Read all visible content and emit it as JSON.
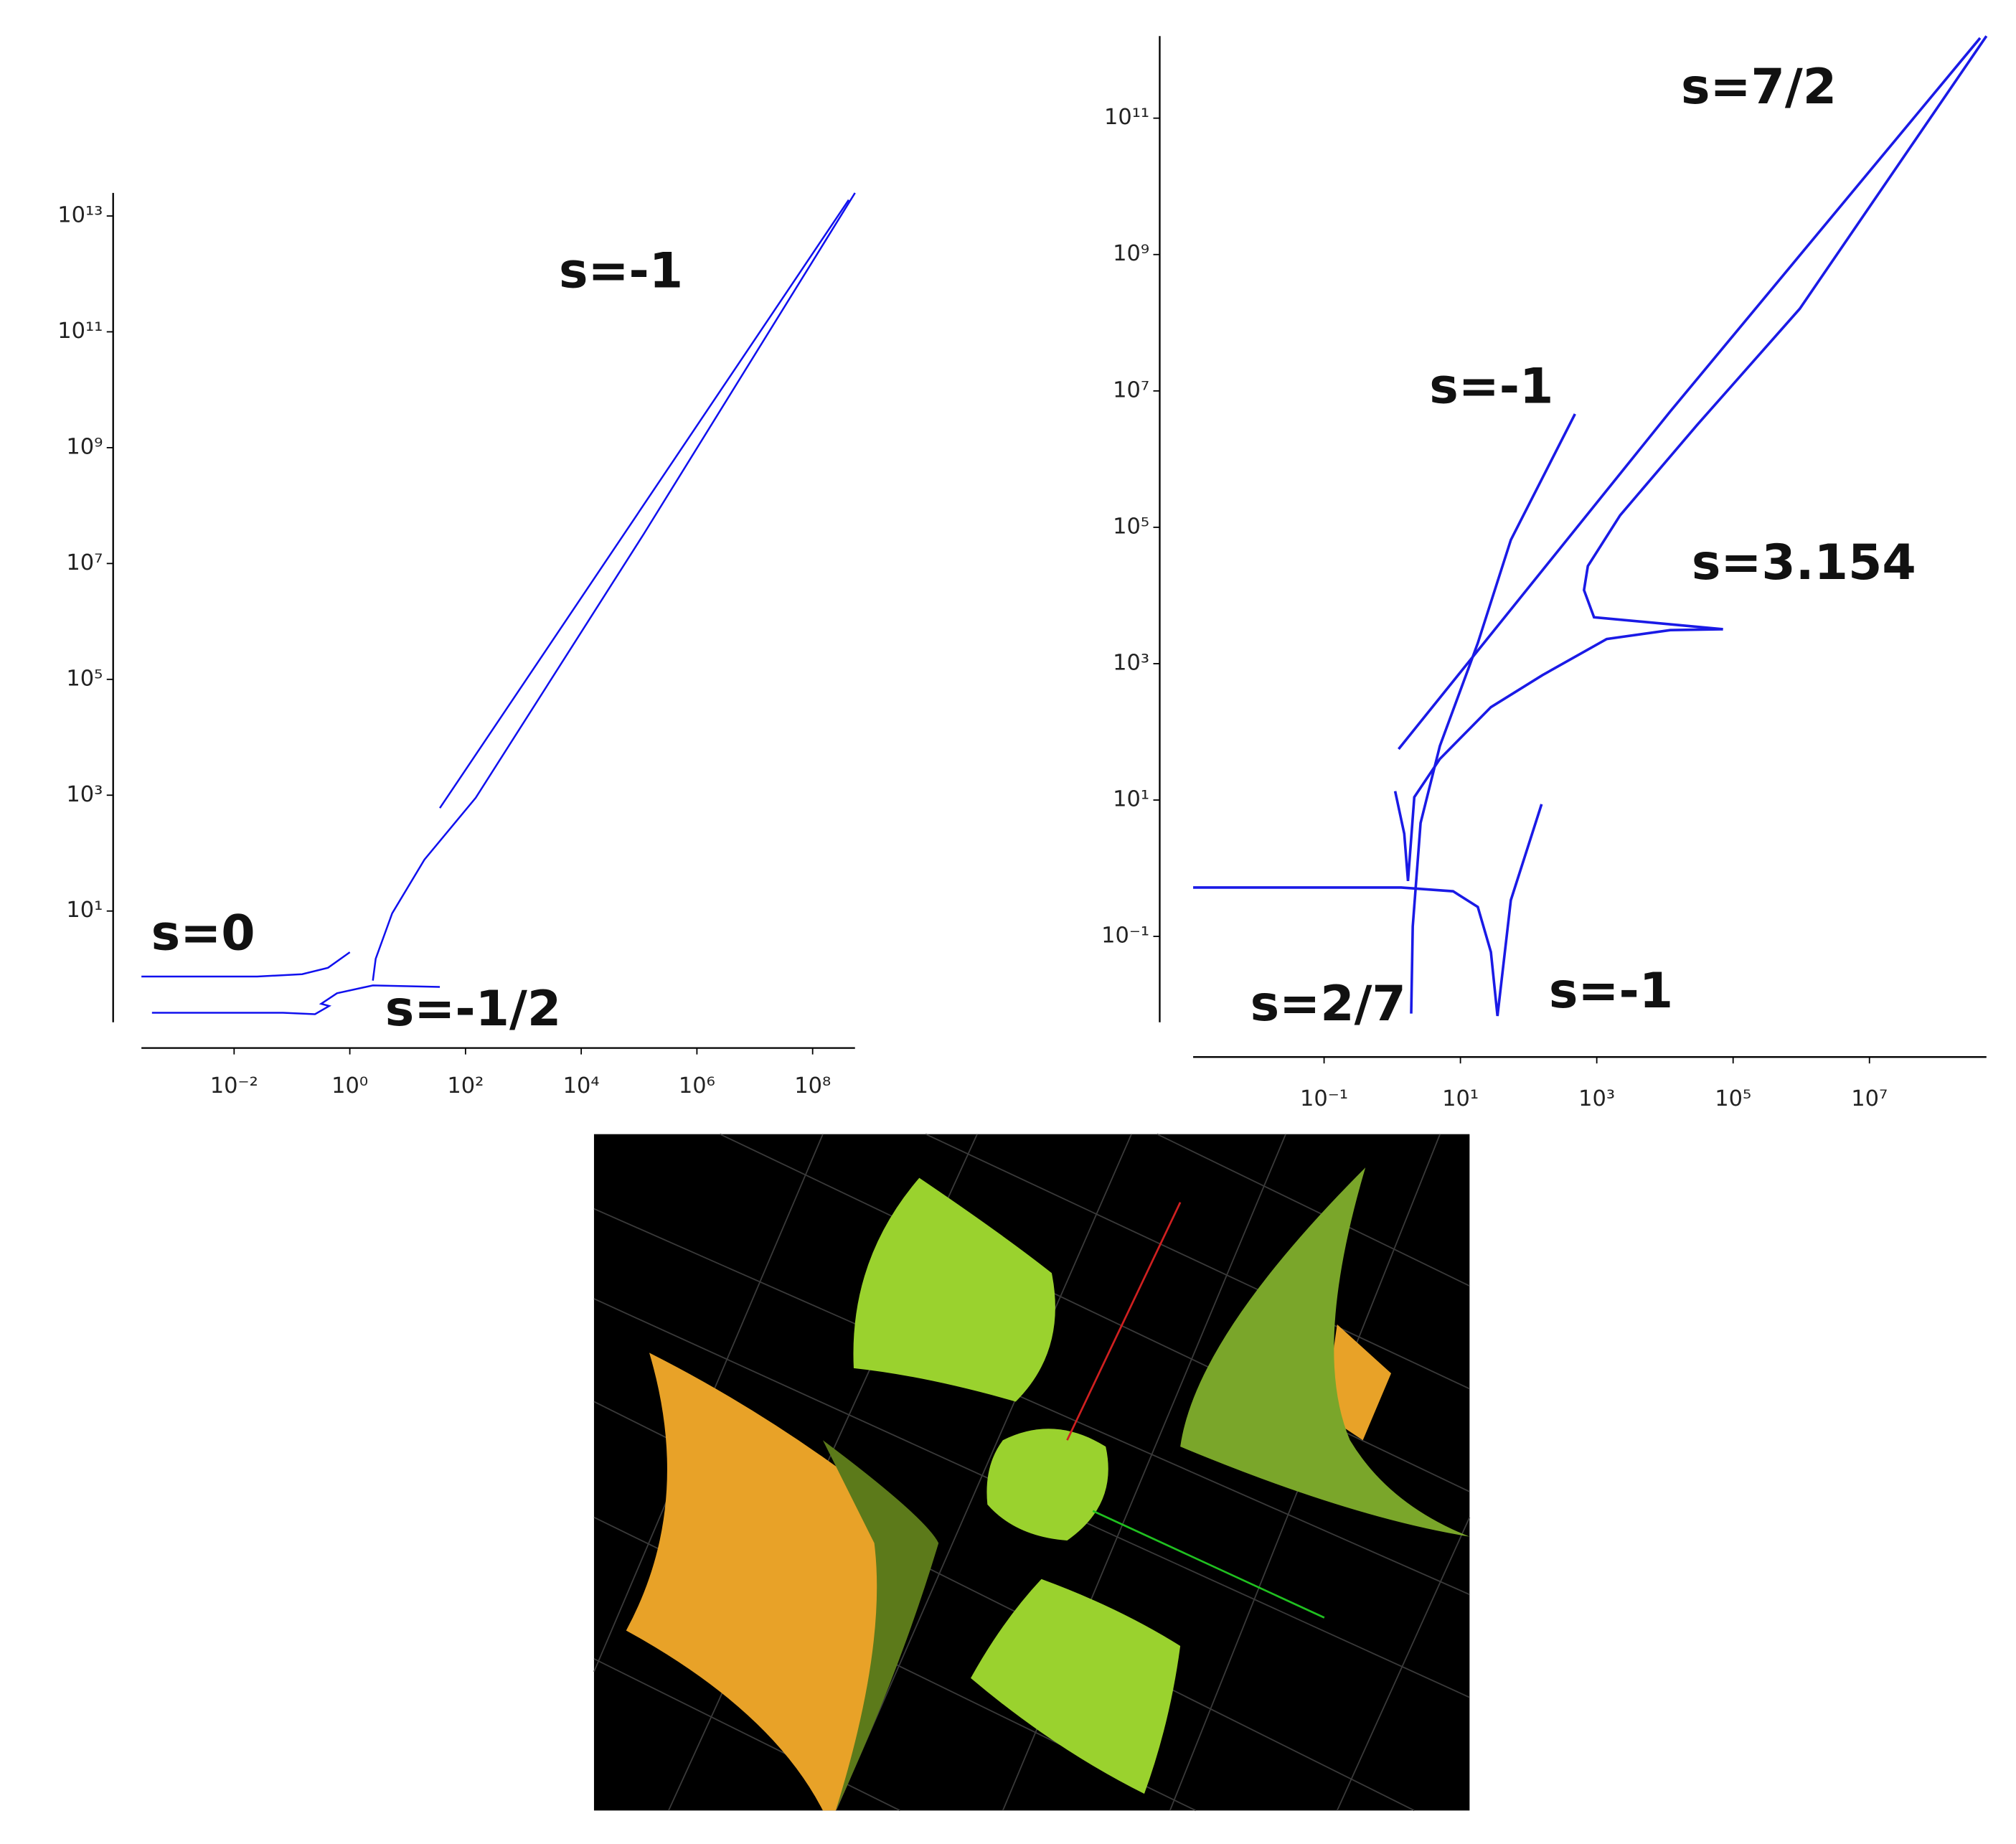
{
  "chart_data": [
    {
      "type": "line",
      "xscale": "log",
      "yscale": "log",
      "xlim": [
        0.00025,
        540000000
      ],
      "ylim": [
        0.12,
        25000000000000
      ],
      "xticks": [
        {
          "value": 0.01,
          "label": "10⁻²"
        },
        {
          "value": 1,
          "label": "10⁰"
        },
        {
          "value": 100,
          "label": "10²"
        },
        {
          "value": 10000,
          "label": "10⁴"
        },
        {
          "value": 1000000,
          "label": "10⁶"
        },
        {
          "value": 100000000,
          "label": "10⁸"
        }
      ],
      "yticks": [
        {
          "value": 10,
          "label": "10¹"
        },
        {
          "value": 1000,
          "label": "10³"
        },
        {
          "value": 100000,
          "label": "10⁵"
        },
        {
          "value": 10000000,
          "label": "10⁷"
        },
        {
          "value": 1000000000,
          "label": "10⁹"
        },
        {
          "value": 100000000000,
          "label": "10¹¹"
        },
        {
          "value": 10000000000000,
          "label": "10¹³"
        }
      ],
      "annotations": [
        "s=-1",
        "s=0",
        "s=-1/2"
      ],
      "series": [
        {
          "color": "#1010ee",
          "x": [
            0.00025,
            0.025,
            0.15,
            0.42,
            1
          ],
          "values": [
            0.74,
            0.74,
            0.81,
            1.05,
            1.95
          ]
        },
        {
          "color": "#1010ee",
          "x": [
            0.00038,
            0.07,
            0.25,
            0.44,
            0.32,
            0.6,
            2.5,
            36
          ],
          "values": [
            0.175,
            0.175,
            0.166,
            0.23,
            0.25,
            0.38,
            0.52,
            0.49
          ]
        },
        {
          "color": "#1010ee",
          "x": [
            2.5,
            2.8,
            5.4,
            19.5,
            150,
            120000,
            540000000
          ],
          "values": [
            0.63,
            1.5,
            9.1,
            77,
            900,
            32000000,
            25000000000000
          ]
        },
        {
          "color": "#1010ee",
          "x": [
            36,
            420000000
          ],
          "values": [
            600,
            19000000000000
          ]
        }
      ]
    },
    {
      "type": "line",
      "xscale": "log",
      "yscale": "log",
      "xlim": [
        0.0012,
        520000000
      ],
      "ylim": [
        0.0055,
        1600000000000
      ],
      "xticks": [
        {
          "value": 0.1,
          "label": "10⁻¹"
        },
        {
          "value": 10,
          "label": "10¹"
        },
        {
          "value": 1000,
          "label": "10³"
        },
        {
          "value": 100000,
          "label": "10⁵"
        },
        {
          "value": 10000000,
          "label": "10⁷"
        }
      ],
      "yticks": [
        {
          "value": 0.1,
          "label": "10⁻¹"
        },
        {
          "value": 10,
          "label": "10¹"
        },
        {
          "value": 1000,
          "label": "10³"
        },
        {
          "value": 100000,
          "label": "10⁵"
        },
        {
          "value": 10000000,
          "label": "10⁷"
        },
        {
          "value": 1000000000,
          "label": "10⁹"
        },
        {
          "value": 100000000000,
          "label": "10¹¹"
        }
      ],
      "annotations": [
        "s=7/2",
        "s=-1",
        "s=3.154",
        "s=2/7",
        "s=-1"
      ],
      "series": [
        {
          "color": "#1a1ae6",
          "x": [
            0.0012,
            1.35,
            7.8,
            18,
            28,
            35,
            55,
            155
          ],
          "values": [
            0.52,
            0.52,
            0.46,
            0.27,
            0.059,
            0.0068,
            0.34,
            8.7
          ]
        },
        {
          "color": "#1a1ae6",
          "x": [
            1.9,
            2,
            2.6,
            5,
            18,
            55,
            480
          ],
          "values": [
            0.0074,
            0.14,
            4.6,
            62,
            2000,
            65000,
            4600000
          ]
        },
        {
          "color": "#1a1ae6",
          "x": [
            1.1,
            1.5,
            1.7,
            2.1,
            5,
            28,
            160,
            1400,
            12000,
            71000
          ],
          "values": [
            13.5,
            3.2,
            0.65,
            11,
            40,
            230,
            680,
            2300,
            3100,
            3200
          ]
        },
        {
          "color": "#1a1ae6",
          "x": [
            1.24,
            12000,
            420000000
          ],
          "values": [
            56,
            5000000,
            1500000000000
          ]
        },
        {
          "color": "#1a1ae6",
          "x": [
            71000,
            910,
            650,
            740,
            2200,
            30000,
            950000,
            520000000
          ],
          "values": [
            3200,
            4800,
            12000,
            27000,
            150000,
            3200000,
            160000000,
            1600000000000
          ]
        }
      ]
    }
  ]
}
